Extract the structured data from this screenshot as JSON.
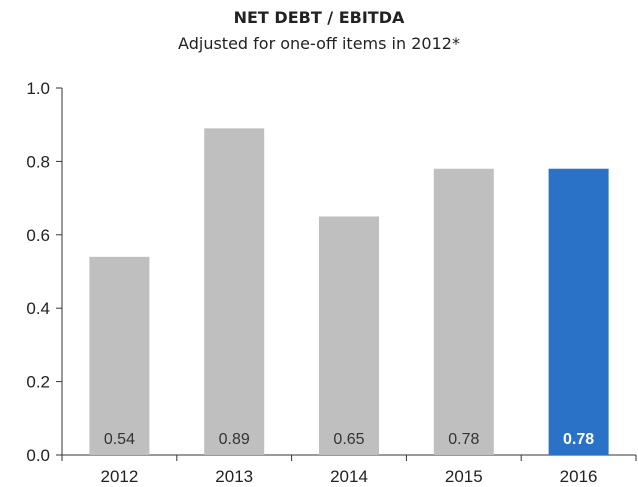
{
  "chart_data": {
    "type": "bar",
    "title": "NET DEBT / EBITDA",
    "subtitle": "Adjusted for one-off items in 2012*",
    "categories": [
      "2012",
      "2013",
      "2014",
      "2015",
      "2016"
    ],
    "values": [
      0.54,
      0.89,
      0.65,
      0.78,
      0.78
    ],
    "value_labels": [
      "0.54",
      "0.89",
      "0.65",
      "0.78",
      "0.78"
    ],
    "ylim": [
      0,
      1.0
    ],
    "yticks": [
      "0.0",
      "0.2",
      "0.4",
      "0.6",
      "0.8",
      "1.0"
    ],
    "grid": false,
    "colors": {
      "default": "#bfbfbf",
      "highlight": "#2a72c8"
    },
    "highlight_index": 4,
    "xlabel": "",
    "ylabel": ""
  }
}
